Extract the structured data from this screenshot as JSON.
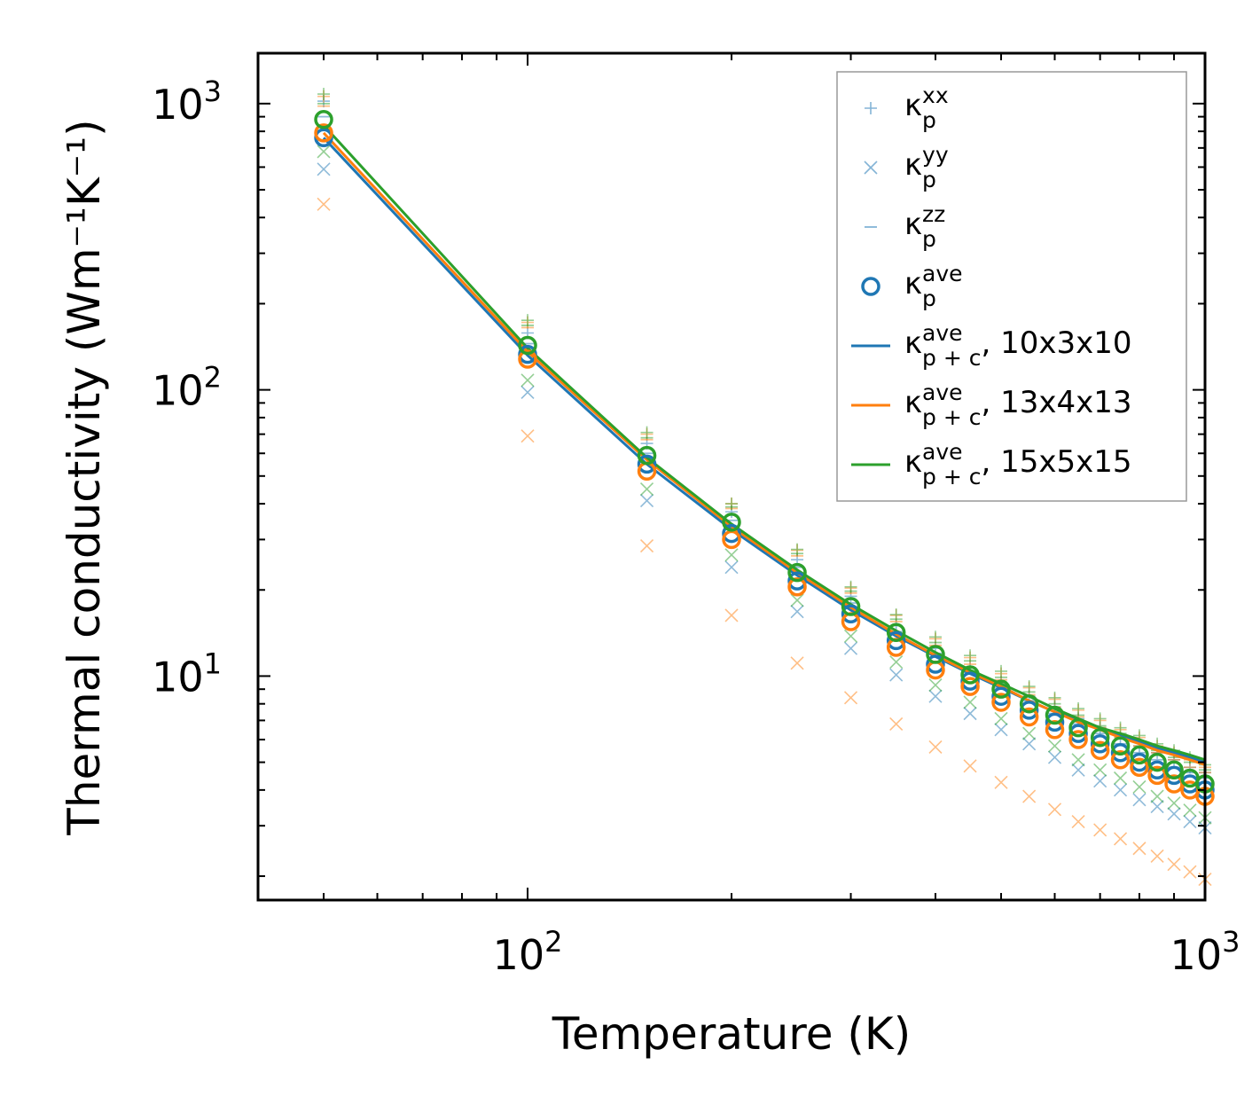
{
  "chart_data": {
    "type": "line",
    "title": "",
    "xlabel": "Temperature (K)",
    "ylabel": "Thermal conductivity (Wm⁻¹K⁻¹)",
    "xscale": "log",
    "yscale": "log",
    "xlim": [
      40,
      1000
    ],
    "ylim": [
      1.65,
      1500
    ],
    "x_ticks": [
      {
        "value": 100,
        "base": "10",
        "exp": "2"
      },
      {
        "value": 1000,
        "base": "10",
        "exp": "3"
      }
    ],
    "y_ticks": [
      {
        "value": 10,
        "base": "10",
        "exp": "1"
      },
      {
        "value": 100,
        "base": "10",
        "exp": "2"
      },
      {
        "value": 1000,
        "base": "10",
        "exp": "3"
      }
    ],
    "legend_position": "top-right",
    "legend": [
      {
        "symbol": "+",
        "style": "plus",
        "base": "κ",
        "sub": "p",
        "sup": "xx",
        "suffix": ""
      },
      {
        "symbol": "×",
        "style": "x",
        "base": "κ",
        "sub": "p",
        "sup": "yy",
        "suffix": ""
      },
      {
        "symbol": "−",
        "style": "dash",
        "base": "κ",
        "sub": "p",
        "sup": "zz",
        "suffix": ""
      },
      {
        "symbol": "o",
        "style": "circle",
        "base": "κ",
        "sub": "p",
        "sup": "ave",
        "suffix": ""
      },
      {
        "symbol": "line",
        "style": "line",
        "base": "κ",
        "sub": "p + c",
        "sup": "ave",
        "suffix": ", 10x3x10",
        "color": "#1f77b4"
      },
      {
        "symbol": "line",
        "style": "line",
        "base": "κ",
        "sub": "p + c",
        "sup": "ave",
        "suffix": ", 13x4x13",
        "color": "#ff7f0e"
      },
      {
        "symbol": "line",
        "style": "line",
        "base": "κ",
        "sub": "p + c",
        "sup": "ave",
        "suffix": ", 15x5x15",
        "color": "#2ca02c"
      }
    ],
    "x": [
      50,
      100,
      150,
      200,
      250,
      300,
      350,
      400,
      450,
      500,
      550,
      600,
      650,
      700,
      750,
      800,
      850,
      900,
      950,
      1000
    ],
    "series": [
      {
        "name": "10x3x10",
        "color": "#1f77b4",
        "line": [
          760,
          132,
          55,
          32.5,
          22.5,
          17.0,
          13.8,
          11.7,
          10.2,
          9.1,
          8.2,
          7.5,
          7.0,
          6.5,
          6.2,
          5.9,
          5.6,
          5.4,
          5.2,
          5.0
        ],
        "xx": [
          1020,
          158,
          65,
          37.5,
          25.5,
          19.0,
          15.0,
          12.5,
          10.7,
          9.5,
          8.5,
          7.8,
          7.1,
          6.6,
          6.1,
          5.7,
          5.4,
          5.1,
          4.8,
          4.6
        ],
        "yy": [
          590,
          98,
          41,
          24.0,
          16.8,
          12.5,
          10.1,
          8.5,
          7.4,
          6.5,
          5.8,
          5.2,
          4.7,
          4.3,
          4.0,
          3.7,
          3.5,
          3.3,
          3.1,
          2.95
        ],
        "zz": [
          900,
          145,
          60,
          35.0,
          24.0,
          18.0,
          14.3,
          12.0,
          10.3,
          9.1,
          8.2,
          7.4,
          6.8,
          6.3,
          5.8,
          5.4,
          5.1,
          4.8,
          4.6,
          4.4
        ],
        "ave": [
          760,
          133,
          55,
          31.5,
          21.5,
          16.5,
          13.3,
          11.0,
          9.6,
          8.5,
          7.6,
          6.9,
          6.3,
          5.8,
          5.4,
          5.0,
          4.7,
          4.5,
          4.2,
          4.0
        ]
      },
      {
        "name": "13x4x13",
        "color": "#ff7f0e",
        "line": [
          790,
          136,
          57,
          33.3,
          23.0,
          17.4,
          14.0,
          11.8,
          10.3,
          9.2,
          8.2,
          7.5,
          6.9,
          6.5,
          6.1,
          5.8,
          5.5,
          5.3,
          5.1,
          4.9
        ],
        "xx": [
          1060,
          172,
          70,
          40.0,
          27.5,
          20.3,
          16.3,
          13.5,
          11.6,
          10.2,
          9.1,
          8.3,
          7.6,
          7.0,
          6.5,
          6.1,
          5.7,
          5.4,
          5.1,
          4.8
        ],
        "yy": [
          445,
          69,
          28.5,
          16.3,
          11.1,
          8.4,
          6.8,
          5.65,
          4.85,
          4.25,
          3.8,
          3.42,
          3.1,
          2.9,
          2.7,
          2.5,
          2.35,
          2.2,
          2.07,
          1.95
        ],
        "zz": [
          980,
          165,
          67,
          38.5,
          26.3,
          19.5,
          15.5,
          12.8,
          11.0,
          9.7,
          8.6,
          7.8,
          7.2,
          6.6,
          6.1,
          5.7,
          5.4,
          5.1,
          4.8,
          4.6
        ],
        "ave": [
          790,
          128,
          52,
          30.0,
          20.5,
          15.5,
          12.6,
          10.5,
          9.2,
          8.1,
          7.2,
          6.5,
          6.0,
          5.5,
          5.1,
          4.8,
          4.5,
          4.2,
          4.0,
          3.8
        ]
      },
      {
        "name": "15x5x15",
        "color": "#2ca02c",
        "line": [
          840,
          140,
          58,
          34.0,
          23.5,
          17.8,
          14.4,
          12.1,
          10.5,
          9.4,
          8.5,
          7.7,
          7.1,
          6.6,
          6.3,
          6.0,
          5.7,
          5.5,
          5.3,
          5.1
        ],
        "xx": [
          1080,
          175,
          71,
          40.0,
          27.7,
          20.5,
          16.4,
          13.7,
          11.8,
          10.4,
          9.2,
          8.4,
          7.7,
          7.1,
          6.6,
          6.2,
          5.8,
          5.5,
          5.2,
          4.9
        ],
        "yy": [
          680,
          108,
          45,
          26.5,
          18.4,
          13.8,
          11.2,
          9.3,
          8.1,
          7.1,
          6.3,
          5.7,
          5.1,
          4.7,
          4.4,
          4.1,
          3.8,
          3.6,
          3.4,
          3.2
        ],
        "zz": [
          1000,
          168,
          68,
          39.0,
          26.8,
          19.8,
          15.8,
          13.1,
          11.3,
          9.9,
          8.8,
          8.0,
          7.3,
          6.7,
          6.3,
          5.9,
          5.5,
          5.2,
          5.0,
          4.7
        ],
        "ave": [
          880,
          143,
          59,
          34.5,
          23.0,
          17.5,
          14.2,
          11.9,
          10.1,
          9.0,
          8.0,
          7.3,
          6.6,
          6.1,
          5.7,
          5.3,
          5.0,
          4.7,
          4.4,
          4.2
        ]
      }
    ]
  }
}
